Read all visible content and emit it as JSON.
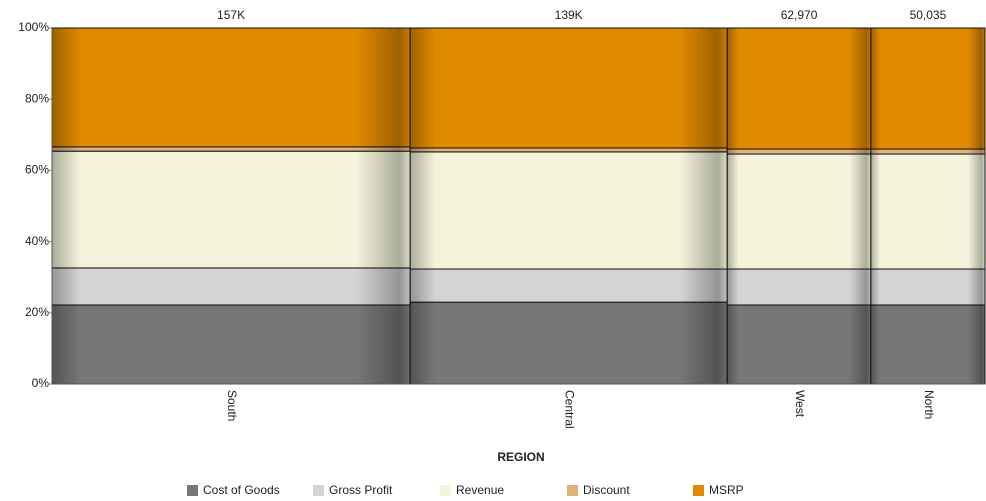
{
  "chart_data": {
    "type": "marimekko",
    "x_label": "REGION",
    "categories": [
      "South",
      "Central",
      "West",
      "North"
    ],
    "totals": {
      "values": [
        157000,
        139000,
        62970,
        50035
      ],
      "value_labels": [
        "157K",
        "139K",
        "62,970",
        "50,035"
      ]
    },
    "series": [
      {
        "name": "Cost of Goods",
        "color": "#777777",
        "values": [
          22.2,
          23.0,
          22.2,
          22.2
        ]
      },
      {
        "name": "Gross Profit",
        "color": "#d4d4d4",
        "values": [
          10.4,
          9.3,
          10.1,
          10.1
        ]
      },
      {
        "name": "Revenue",
        "color": "#f4f4dc",
        "values": [
          32.8,
          32.9,
          32.3,
          32.3
        ]
      },
      {
        "name": "Discount",
        "color": "#e0b27a",
        "values": [
          1.2,
          1.1,
          1.4,
          1.4
        ]
      },
      {
        "name": "MSRP",
        "color": "#e08a00",
        "values": [
          33.4,
          33.7,
          34.0,
          34.0
        ]
      }
    ],
    "ylim": [
      0,
      100
    ],
    "yticks": [
      {
        "value": 0,
        "label": "0%"
      },
      {
        "value": 20,
        "label": "20%"
      },
      {
        "value": 40,
        "label": "40%"
      },
      {
        "value": 60,
        "label": "60%"
      },
      {
        "value": 80,
        "label": "80%"
      },
      {
        "value": 100,
        "label": "100%"
      }
    ]
  }
}
